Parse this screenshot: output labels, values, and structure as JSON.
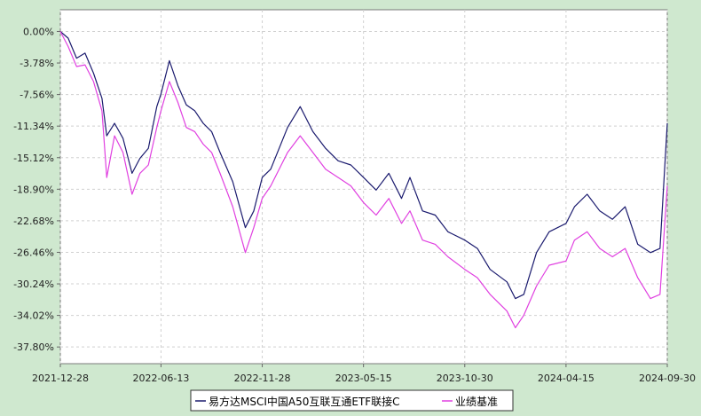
{
  "chart_data": {
    "type": "line",
    "x_ticks": [
      "2021-12-28",
      "2022-06-13",
      "2022-11-28",
      "2023-05-15",
      "2023-10-30",
      "2024-04-15",
      "2024-09-30"
    ],
    "y_ticks": [
      "0.00%",
      "-3.78%",
      "-7.56%",
      "-11.34%",
      "-15.12%",
      "-18.90%",
      "-22.68%",
      "-26.46%",
      "-30.24%",
      "-34.02%",
      "-37.80%"
    ],
    "ylim": [
      -39.8,
      2.6
    ],
    "xlim": [
      "2021-12-28",
      "2024-09-30"
    ],
    "grid": true,
    "legend_position": "bottom-center",
    "series": [
      {
        "name": "易方达MSCI中国A50互联互通ETF联接C",
        "color": "#1a1a6e",
        "points": [
          [
            "2021-12-28",
            0.0
          ],
          [
            "2022-01-10",
            -0.8
          ],
          [
            "2022-01-24",
            -3.2
          ],
          [
            "2022-02-07",
            -2.6
          ],
          [
            "2022-02-21",
            -5.0
          ],
          [
            "2022-03-07",
            -8.0
          ],
          [
            "2022-03-15",
            -12.5
          ],
          [
            "2022-03-28",
            -11.0
          ],
          [
            "2022-04-11",
            -12.8
          ],
          [
            "2022-04-26",
            -17.0
          ],
          [
            "2022-05-09",
            -15.2
          ],
          [
            "2022-05-23",
            -14.0
          ],
          [
            "2022-06-06",
            -9.0
          ],
          [
            "2022-06-13",
            -7.5
          ],
          [
            "2022-06-27",
            -3.5
          ],
          [
            "2022-07-11",
            -6.5
          ],
          [
            "2022-07-25",
            -8.8
          ],
          [
            "2022-08-08",
            -9.5
          ],
          [
            "2022-08-22",
            -11.0
          ],
          [
            "2022-09-05",
            -12.0
          ],
          [
            "2022-09-19",
            -14.5
          ],
          [
            "2022-10-10",
            -18.0
          ],
          [
            "2022-10-31",
            -23.5
          ],
          [
            "2022-11-14",
            -21.5
          ],
          [
            "2022-11-28",
            -17.5
          ],
          [
            "2022-12-12",
            -16.5
          ],
          [
            "2023-01-09",
            -11.5
          ],
          [
            "2023-01-30",
            -9.0
          ],
          [
            "2023-02-20",
            -12.0
          ],
          [
            "2023-03-13",
            -14.0
          ],
          [
            "2023-04-03",
            -15.5
          ],
          [
            "2023-04-24",
            -16.0
          ],
          [
            "2023-05-15",
            -17.5
          ],
          [
            "2023-06-05",
            -19.0
          ],
          [
            "2023-06-26",
            -17.0
          ],
          [
            "2023-07-17",
            -20.0
          ],
          [
            "2023-07-31",
            -17.5
          ],
          [
            "2023-08-21",
            -21.5
          ],
          [
            "2023-09-11",
            -22.0
          ],
          [
            "2023-10-02",
            -24.0
          ],
          [
            "2023-10-30",
            -25.0
          ],
          [
            "2023-11-20",
            -26.0
          ],
          [
            "2023-12-11",
            -28.5
          ],
          [
            "2024-01-08",
            -30.0
          ],
          [
            "2024-01-22",
            -32.0
          ],
          [
            "2024-02-05",
            -31.5
          ],
          [
            "2024-02-26",
            -26.5
          ],
          [
            "2024-03-18",
            -24.0
          ],
          [
            "2024-04-15",
            -23.0
          ],
          [
            "2024-04-29",
            -21.0
          ],
          [
            "2024-05-20",
            -19.5
          ],
          [
            "2024-06-10",
            -21.5
          ],
          [
            "2024-07-01",
            -22.5
          ],
          [
            "2024-07-22",
            -21.0
          ],
          [
            "2024-08-12",
            -25.5
          ],
          [
            "2024-09-02",
            -26.5
          ],
          [
            "2024-09-18",
            -26.0
          ],
          [
            "2024-09-30",
            -11.0
          ]
        ]
      },
      {
        "name": "业绩基准",
        "color": "#e040e0",
        "points": [
          [
            "2021-12-28",
            0.0
          ],
          [
            "2022-01-10",
            -1.8
          ],
          [
            "2022-01-24",
            -4.2
          ],
          [
            "2022-02-07",
            -4.0
          ],
          [
            "2022-02-21",
            -6.0
          ],
          [
            "2022-03-07",
            -9.5
          ],
          [
            "2022-03-15",
            -17.5
          ],
          [
            "2022-03-28",
            -12.5
          ],
          [
            "2022-04-11",
            -14.5
          ],
          [
            "2022-04-26",
            -19.5
          ],
          [
            "2022-05-09",
            -17.0
          ],
          [
            "2022-05-23",
            -16.0
          ],
          [
            "2022-06-06",
            -11.5
          ],
          [
            "2022-06-13",
            -9.5
          ],
          [
            "2022-06-27",
            -6.0
          ],
          [
            "2022-07-11",
            -8.5
          ],
          [
            "2022-07-25",
            -11.5
          ],
          [
            "2022-08-08",
            -12.0
          ],
          [
            "2022-08-22",
            -13.5
          ],
          [
            "2022-09-05",
            -14.5
          ],
          [
            "2022-09-19",
            -17.0
          ],
          [
            "2022-10-10",
            -21.0
          ],
          [
            "2022-10-31",
            -26.5
          ],
          [
            "2022-11-14",
            -23.5
          ],
          [
            "2022-11-28",
            -20.0
          ],
          [
            "2022-12-12",
            -18.5
          ],
          [
            "2023-01-09",
            -14.5
          ],
          [
            "2023-01-30",
            -12.5
          ],
          [
            "2023-02-20",
            -14.5
          ],
          [
            "2023-03-13",
            -16.5
          ],
          [
            "2023-04-03",
            -17.5
          ],
          [
            "2023-04-24",
            -18.5
          ],
          [
            "2023-05-15",
            -20.5
          ],
          [
            "2023-06-05",
            -22.0
          ],
          [
            "2023-06-26",
            -20.0
          ],
          [
            "2023-07-17",
            -23.0
          ],
          [
            "2023-07-31",
            -21.5
          ],
          [
            "2023-08-21",
            -25.0
          ],
          [
            "2023-09-11",
            -25.5
          ],
          [
            "2023-10-02",
            -27.0
          ],
          [
            "2023-10-30",
            -28.5
          ],
          [
            "2023-11-20",
            -29.5
          ],
          [
            "2023-12-11",
            -31.5
          ],
          [
            "2024-01-08",
            -33.5
          ],
          [
            "2024-01-22",
            -35.5
          ],
          [
            "2024-02-05",
            -34.0
          ],
          [
            "2024-02-26",
            -30.5
          ],
          [
            "2024-03-18",
            -28.0
          ],
          [
            "2024-04-15",
            -27.5
          ],
          [
            "2024-04-29",
            -25.0
          ],
          [
            "2024-05-20",
            -24.0
          ],
          [
            "2024-06-10",
            -26.0
          ],
          [
            "2024-07-01",
            -27.0
          ],
          [
            "2024-07-22",
            -26.0
          ],
          [
            "2024-08-12",
            -29.5
          ],
          [
            "2024-09-02",
            -32.0
          ],
          [
            "2024-09-18",
            -31.5
          ],
          [
            "2024-09-30",
            -18.5
          ]
        ]
      }
    ]
  }
}
